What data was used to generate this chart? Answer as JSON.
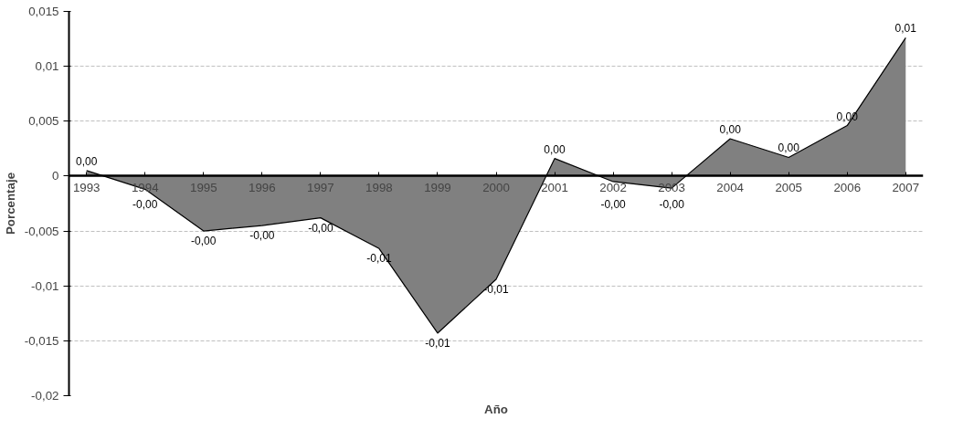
{
  "chart_data": {
    "type": "area",
    "xlabel": "Año",
    "ylabel": "Porcentaje",
    "categories": [
      "1993",
      "1994",
      "1995",
      "1996",
      "1997",
      "1998",
      "1999",
      "2000",
      "2001",
      "2002",
      "2003",
      "2004",
      "2005",
      "2006",
      "2007"
    ],
    "series": [
      {
        "color": "#808080",
        "values": [
          0.0005,
          -0.0012,
          -0.005,
          -0.0045,
          -0.0038,
          -0.0066,
          -0.0143,
          -0.0094,
          0.0016,
          -0.0005,
          -0.0011,
          0.0034,
          0.0017,
          0.0046,
          0.0126
        ],
        "value_labels": [
          "0,00",
          "-0,00",
          "-0,00",
          "-0,00",
          "-0,00",
          "-0,01",
          "-0,01",
          "-0,01",
          "0,00",
          "-0,00",
          "-0,00",
          "0,00",
          "0,00",
          "0,00",
          "0,01"
        ]
      }
    ],
    "ylim": [
      -0.02,
      0.015
    ],
    "yticks": [
      {
        "value": -0.02,
        "label": "-0,02"
      },
      {
        "value": -0.015,
        "label": "-0,015"
      },
      {
        "value": -0.01,
        "label": "-0,01"
      },
      {
        "value": -0.005,
        "label": "-0,005"
      },
      {
        "value": 0,
        "label": "0"
      },
      {
        "value": 0.005,
        "label": "0,005"
      },
      {
        "value": 0.01,
        "label": "0,01"
      },
      {
        "value": 0.015,
        "label": "0,015"
      }
    ],
    "grid": "y"
  }
}
